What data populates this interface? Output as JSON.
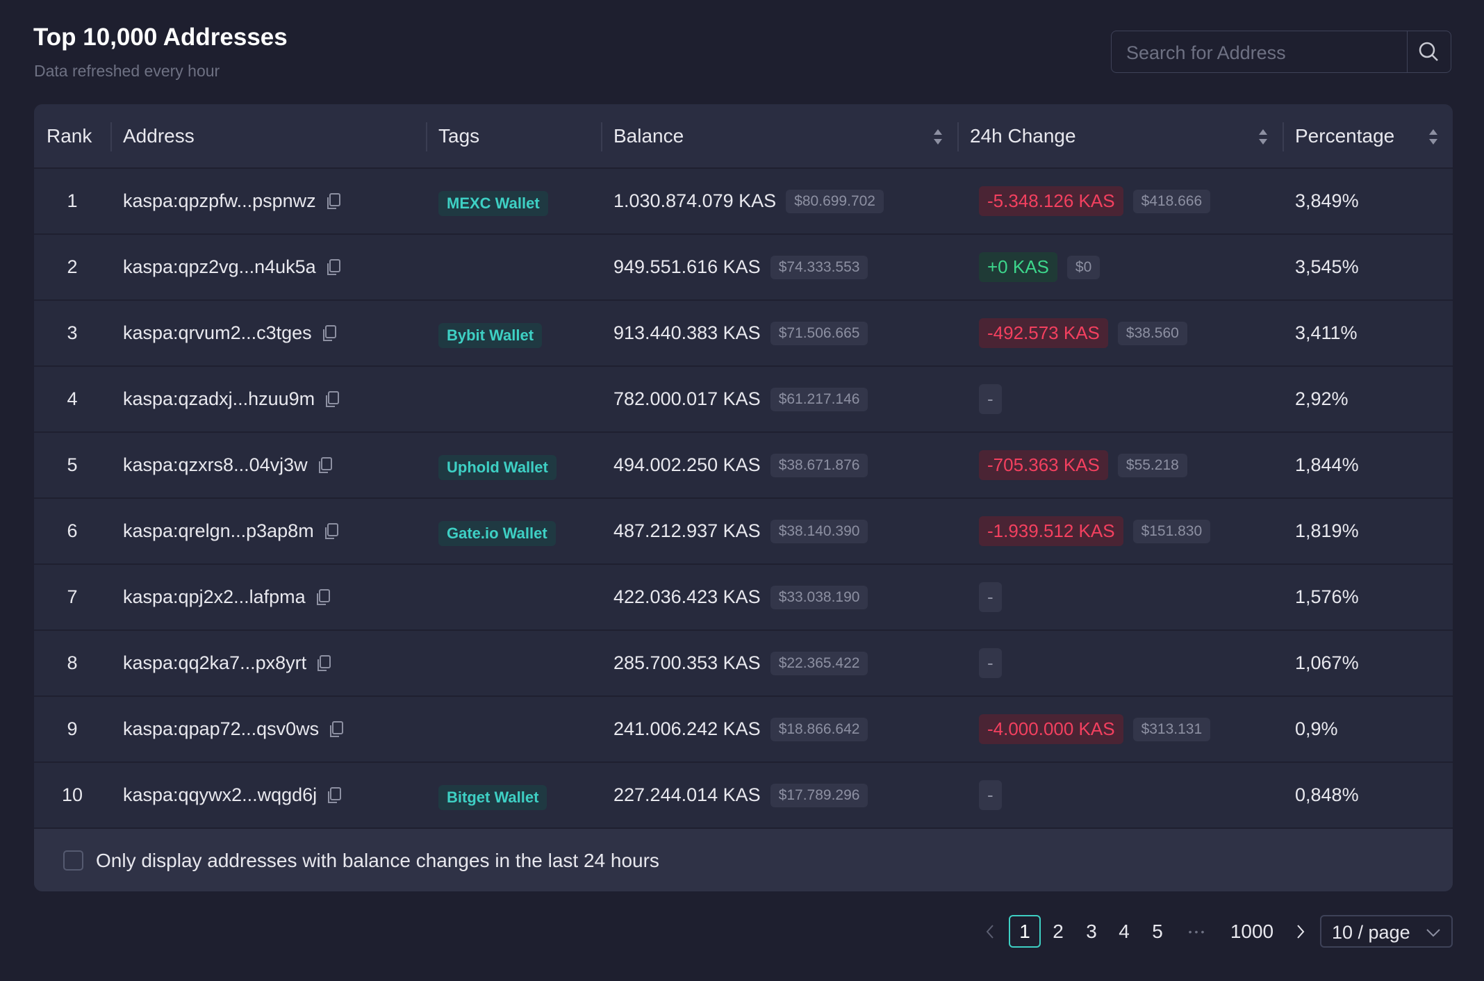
{
  "header": {
    "title": "Top 10,000 Addresses",
    "subtitle": "Data refreshed every hour",
    "search_placeholder": "Search for Address"
  },
  "table": {
    "columns": [
      "Rank",
      "Address",
      "Tags",
      "Balance",
      "24h Change",
      "Percentage"
    ],
    "rows": [
      {
        "rank": "1",
        "address": "kaspa:qpzpfw...pspnwz",
        "tag": "MEXC Wallet",
        "balance": "1.030.874.079 KAS",
        "balance_usd": "$80.699.702",
        "change": "-5.348.126 KAS",
        "change_usd": "$418.666",
        "percentage": "3,849%"
      },
      {
        "rank": "2",
        "address": "kaspa:qpz2vg...n4uk5a",
        "tag": null,
        "balance": "949.551.616 KAS",
        "balance_usd": "$74.333.553",
        "change": "+0 KAS",
        "change_usd": "$0",
        "percentage": "3,545%"
      },
      {
        "rank": "3",
        "address": "kaspa:qrvum2...c3tges",
        "tag": "Bybit Wallet",
        "balance": "913.440.383 KAS",
        "balance_usd": "$71.506.665",
        "change": "-492.573 KAS",
        "change_usd": "$38.560",
        "percentage": "3,411%"
      },
      {
        "rank": "4",
        "address": "kaspa:qzadxj...hzuu9m",
        "tag": null,
        "balance": "782.000.017 KAS",
        "balance_usd": "$61.217.146",
        "change": "-",
        "change_usd": null,
        "percentage": "2,92%"
      },
      {
        "rank": "5",
        "address": "kaspa:qzxrs8...04vj3w",
        "tag": "Uphold Wallet",
        "balance": "494.002.250 KAS",
        "balance_usd": "$38.671.876",
        "change": "-705.363 KAS",
        "change_usd": "$55.218",
        "percentage": "1,844%"
      },
      {
        "rank": "6",
        "address": "kaspa:qrelgn...p3ap8m",
        "tag": "Gate.io Wallet",
        "balance": "487.212.937 KAS",
        "balance_usd": "$38.140.390",
        "change": "-1.939.512 KAS",
        "change_usd": "$151.830",
        "percentage": "1,819%"
      },
      {
        "rank": "7",
        "address": "kaspa:qpj2x2...lafpma",
        "tag": null,
        "balance": "422.036.423 KAS",
        "balance_usd": "$33.038.190",
        "change": "-",
        "change_usd": null,
        "percentage": "1,576%"
      },
      {
        "rank": "8",
        "address": "kaspa:qq2ka7...px8yrt",
        "tag": null,
        "balance": "285.700.353 KAS",
        "balance_usd": "$22.365.422",
        "change": "-",
        "change_usd": null,
        "percentage": "1,067%"
      },
      {
        "rank": "9",
        "address": "kaspa:qpap72...qsv0ws",
        "tag": null,
        "balance": "241.006.242 KAS",
        "balance_usd": "$18.866.642",
        "change": "-4.000.000 KAS",
        "change_usd": "$313.131",
        "percentage": "0,9%"
      },
      {
        "rank": "10",
        "address": "kaspa:qqywx2...wqgd6j",
        "tag": "Bitget Wallet",
        "balance": "227.244.014 KAS",
        "balance_usd": "$17.789.296",
        "change": "-",
        "change_usd": null,
        "percentage": "0,848%"
      }
    ]
  },
  "footer": {
    "checkbox_label": "Only display addresses with balance changes in the last 24 hours"
  },
  "pagination": {
    "pages": [
      "1",
      "2",
      "3",
      "4",
      "5",
      "1000"
    ],
    "ellipsis": "•••",
    "page_size": "10 / page"
  }
}
